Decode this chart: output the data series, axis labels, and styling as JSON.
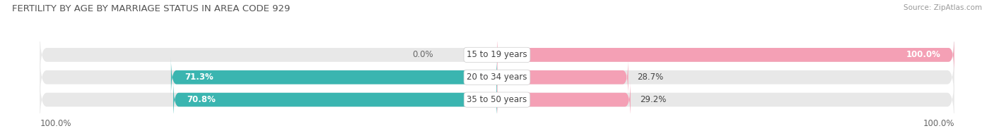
{
  "title": "FERTILITY BY AGE BY MARRIAGE STATUS IN AREA CODE 929",
  "source": "Source: ZipAtlas.com",
  "rows": [
    {
      "label": "15 to 19 years",
      "married": 0.0,
      "unmarried": 100.0
    },
    {
      "label": "20 to 34 years",
      "married": 71.3,
      "unmarried": 28.7
    },
    {
      "label": "35 to 50 years",
      "married": 70.8,
      "unmarried": 29.2
    }
  ],
  "married_color": "#3ab5b0",
  "unmarried_color": "#f4a0b5",
  "bar_bg_color": "#e8e8e8",
  "background_color": "#ffffff",
  "title_fontsize": 9.5,
  "label_fontsize": 8.5,
  "source_fontsize": 7.5,
  "axis_label_left": "100.0%",
  "axis_label_right": "100.0%"
}
